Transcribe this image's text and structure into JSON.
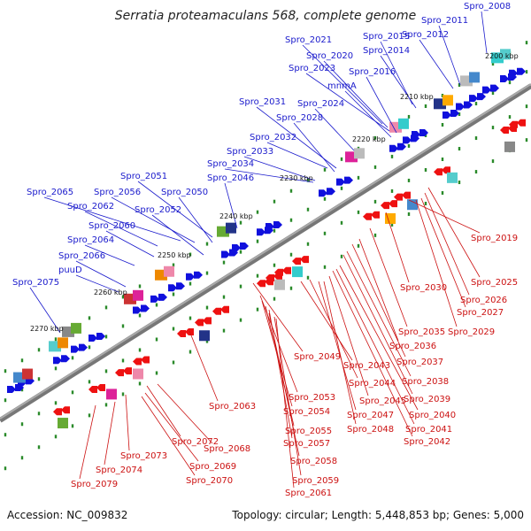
{
  "title": "Serratia proteamaculans 568, complete genome",
  "footer": {
    "accession": "Accession: NC_009832",
    "stats": "Topology: circular; Length: 5,448,853 bp; Genes: 5,000"
  },
  "kbp_labels": [
    "2200 kbp",
    "2210 kbp",
    "2220 kbp",
    "2230 kbp",
    "2240 kbp",
    "2250 kbp",
    "2260 kbp",
    "2270 kbp"
  ],
  "top_labels": [
    "Spro_2008",
    "Spro_2011",
    "Spro_2012",
    "Spro_2015",
    "Spro_2014",
    "Spro_2021",
    "Spro_2020",
    "Spro_2023",
    "Spro_2016",
    "mnmA",
    "Spro_2024",
    "Spro_2031",
    "Spro_2028",
    "Spro_2032",
    "Spro_2033",
    "Spro_2034",
    "Spro_2051",
    "Spro_2046",
    "Spro_2065",
    "Spro_2056",
    "Spro_2050",
    "Spro_2062",
    "Spro_2052",
    "Spro_2060",
    "Spro_2064",
    "Spro_2066",
    "puuD",
    "Spro_2075"
  ],
  "bottom_labels": [
    "Spro_2019",
    "Spro_2025",
    "Spro_2030",
    "Spro_2026",
    "Spro_2027",
    "Spro_2035",
    "Spro_2029",
    "Spro_2036",
    "Spro_2049",
    "Spro_2037",
    "Spro_2043",
    "Spro_2038",
    "Spro_2044",
    "Spro_2045",
    "Spro_2039",
    "Spro_2063",
    "Spro_2053",
    "Spro_2040",
    "Spro_2054",
    "Spro_2047",
    "Spro_2041",
    "Spro_2048",
    "Spro_2055",
    "Spro_2042",
    "Spro_2057",
    "Spro_2072",
    "Spro_2068",
    "Spro_2073",
    "Spro_2058",
    "Spro_2074",
    "Spro_2069",
    "Spro_2070",
    "Spro_2059",
    "Spro_2079",
    "Spro_2061"
  ],
  "colors": {
    "top_label": "#1a1acc",
    "bottom_label": "#cc1111",
    "backbone": "#808080",
    "tick": "#2a8a2a",
    "forward_gene": "#1010dd",
    "reverse_gene": "#ee1111"
  }
}
